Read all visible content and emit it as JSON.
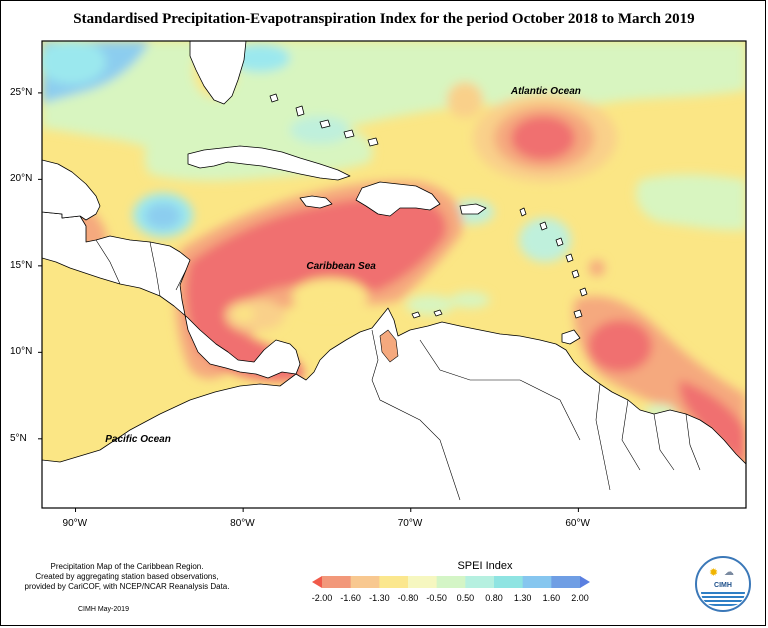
{
  "title": "Standardised Precipitation-Evapotranspiration Index for the period October 2018 to March 2019",
  "map": {
    "extent": {
      "lon_min": -92,
      "lon_max": -50,
      "lat_min": 1,
      "lat_max": 28
    },
    "lat_ticks": [
      {
        "value": 25,
        "label": "25°N"
      },
      {
        "value": 20,
        "label": "20°N"
      },
      {
        "value": 15,
        "label": "15°N"
      },
      {
        "value": 10,
        "label": "10°N"
      },
      {
        "value": 5,
        "label": "5°N"
      }
    ],
    "lon_ticks": [
      {
        "value": -90,
        "label": "90°W"
      },
      {
        "value": -80,
        "label": "80°W"
      },
      {
        "value": -70,
        "label": "70°W"
      },
      {
        "value": -60,
        "label": "60°W"
      }
    ],
    "ocean_labels": [
      {
        "name": "atlantic",
        "text": "Atlantic Ocean",
        "lon": -62.0,
        "lat": 25.0
      },
      {
        "name": "caribbean",
        "text": "Caribbean Sea",
        "lon": -74.2,
        "lat": 14.9
      },
      {
        "name": "pacific",
        "text": "Pacific Ocean",
        "lon": -86.2,
        "lat": 4.9
      }
    ]
  },
  "legend": {
    "title": "SPEI Index",
    "ticks": [
      "-2.00",
      "-1.60",
      "-1.30",
      "-0.80",
      "-0.50",
      "0.50",
      "0.80",
      "1.30",
      "1.60",
      "2.00"
    ],
    "colors": [
      "#f05a4a",
      "#f2987a",
      "#f8c890",
      "#fbe78e",
      "#f6f7c0",
      "#d4f5c6",
      "#b6f0e0",
      "#8fe4e2",
      "#86c6ef",
      "#6f9ee4",
      "#5a7fe0"
    ]
  },
  "palette": {
    "red": "#f07070",
    "salmon": "#f5a97e",
    "orange": "#f9d08a",
    "yellow": "#fbe685",
    "pale_yellow": "#f3f4b4",
    "light_green": "#d8f5c0",
    "mint": "#bff0dc",
    "cyan": "#9be8ee",
    "light_blue": "#8ccdef",
    "blue": "#7fa4e8",
    "land": "#ffffff"
  },
  "caption": {
    "line1": "Precipitation Map of the Caribbean Region.",
    "line2": "Created by aggregating station based observations,",
    "line3": "provided by CariCOF, with NCEP/NCAR Reanalysis Data."
  },
  "credit": "CIMH May-2019",
  "logo": {
    "text": "CIMH"
  }
}
